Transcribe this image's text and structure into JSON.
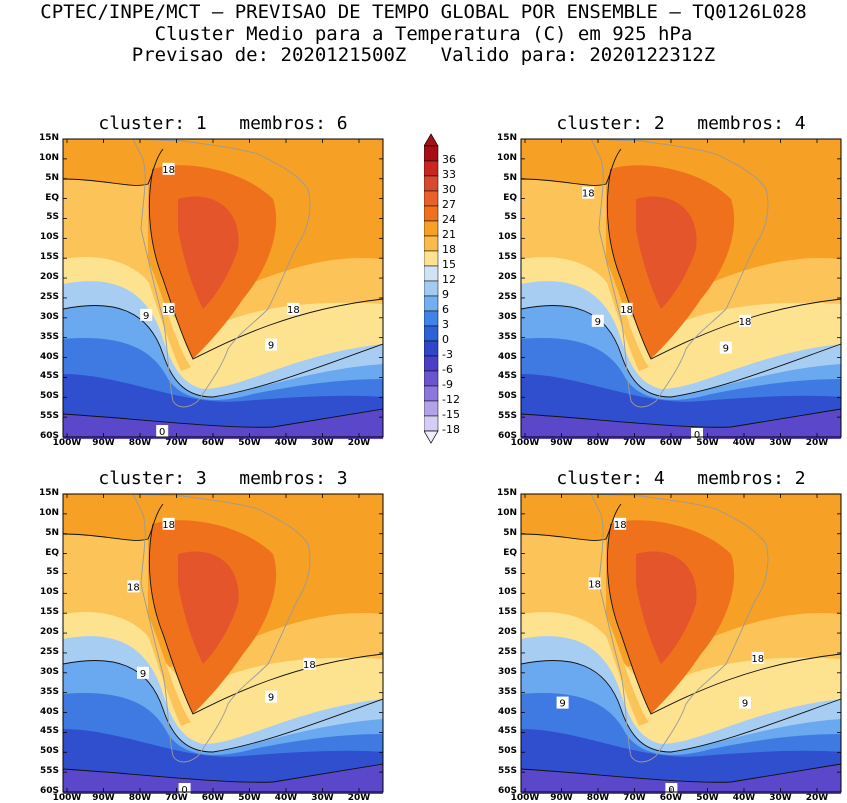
{
  "header": {
    "line1": "CPTEC/INPE/MCT – PREVISAO DE TEMPO GLOBAL POR ENSEMBLE – TQ0126L028",
    "line2": "Cluster Medio para a Temperatura (C) em 925 hPa",
    "line3": "Previsao de: 2020121500Z   Valido para: 2020122312Z"
  },
  "axes": {
    "lat_labels": [
      "15N",
      "10N",
      "5N",
      "EQ",
      "5S",
      "10S",
      "15S",
      "20S",
      "25S",
      "30S",
      "35S",
      "40S",
      "45S",
      "50S",
      "55S",
      "60S"
    ],
    "lon_labels": [
      "100W",
      "90W",
      "80W",
      "70W",
      "60W",
      "50W",
      "40W",
      "30W",
      "20W"
    ]
  },
  "legend": {
    "labels": [
      "36",
      "33",
      "30",
      "27",
      "24",
      "21",
      "18",
      "15",
      "12",
      "9",
      "6",
      "3",
      "0",
      "-3",
      "-6",
      "-9",
      "-12",
      "-15",
      "-18"
    ],
    "colors": [
      "#a50f15",
      "#c8261f",
      "#d84a2e",
      "#e8602a",
      "#f0711c",
      "#f6a025",
      "#fabb4a",
      "#fde28f",
      "#cfe3f5",
      "#a3caf0",
      "#72aef0",
      "#3f83e8",
      "#2b62d8",
      "#2e47c8",
      "#4a3fc6",
      "#6a55d0",
      "#8c78dc",
      "#b3a2ea",
      "#d6cdf4"
    ]
  },
  "panels": [
    {
      "title": "cluster: 1   membros: 6",
      "contour_labels": [
        "18",
        "18",
        "18",
        "9",
        "9",
        "0"
      ]
    },
    {
      "title": "cluster: 2   membros: 4",
      "contour_labels": [
        "18",
        "18",
        "18",
        "9",
        "9",
        "0"
      ]
    },
    {
      "title": "cluster: 3   membros: 3",
      "contour_labels": [
        "18",
        "18",
        "18",
        "9",
        "9",
        "0"
      ]
    },
    {
      "title": "cluster: 4   membros: 2",
      "contour_labels": [
        "18",
        "18",
        "18",
        "9",
        "9",
        "0"
      ]
    }
  ]
}
